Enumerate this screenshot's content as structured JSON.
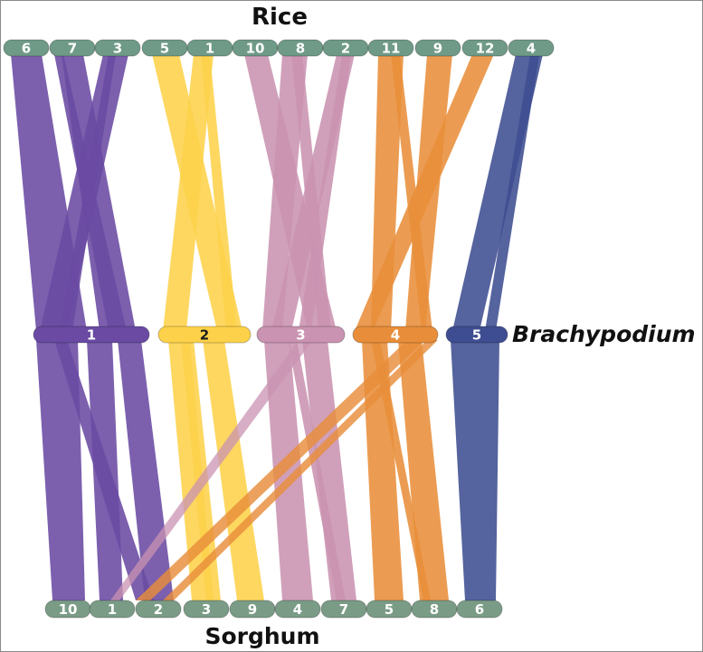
{
  "genomes": {
    "top": "Rice",
    "middle": "Brachypodium",
    "bottom": "Sorghum"
  },
  "rice_chromosomes": [
    "6",
    "7",
    "3",
    "5",
    "1",
    "10",
    "8",
    "2",
    "11",
    "9",
    "12",
    "4"
  ],
  "brachypodium_chromosomes": [
    "1",
    "2",
    "3",
    "4",
    "5"
  ],
  "sorghum_chromosomes": [
    "10",
    "1",
    "2",
    "3",
    "9",
    "4",
    "7",
    "5",
    "8",
    "6"
  ],
  "colors": {
    "chr1": "#6a4aa3",
    "chr2": "#fdd24a",
    "chr3": "#c993b1",
    "chr4": "#e88e3a",
    "chr5": "#3e4d91",
    "rice_bar": "#6f9a87",
    "sorghum_bar": "#7a9c86"
  }
}
